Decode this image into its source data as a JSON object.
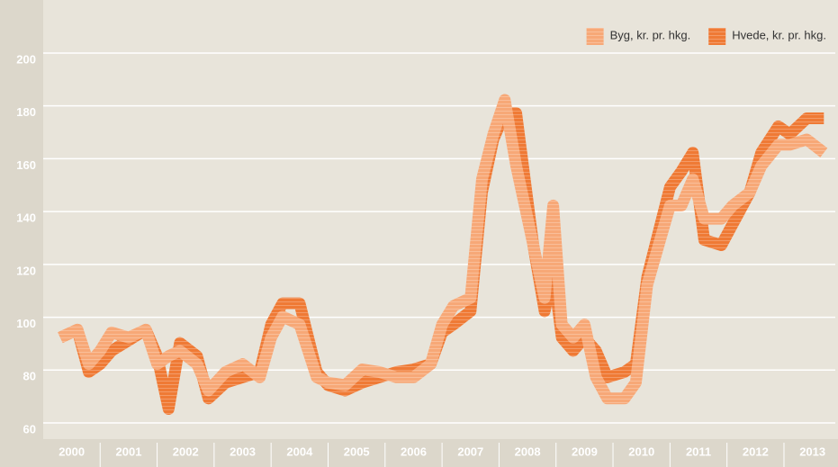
{
  "chart_data": {
    "type": "line",
    "x": [
      2000.3,
      2000.6,
      2000.8,
      2001.0,
      2001.2,
      2001.5,
      2001.8,
      2002.0,
      2002.2,
      2002.4,
      2002.7,
      2002.9,
      2003.2,
      2003.5,
      2003.8,
      2004.0,
      2004.2,
      2004.5,
      2004.8,
      2005.0,
      2005.3,
      2005.6,
      2005.9,
      2006.2,
      2006.5,
      2006.8,
      2007.0,
      2007.2,
      2007.5,
      2007.7,
      2007.9,
      2008.1,
      2008.3,
      2008.6,
      2008.8,
      2008.95,
      2009.1,
      2009.3,
      2009.5,
      2009.7,
      2009.9,
      2010.2,
      2010.4,
      2010.6,
      2010.8,
      2011.0,
      2011.2,
      2011.4,
      2011.6,
      2011.9,
      2012.1,
      2012.4,
      2012.6,
      2012.9,
      2013.1,
      2013.4,
      2013.7
    ],
    "series": [
      {
        "name": "Hvede, kr. pr. hkg.",
        "color": "#ef7a35",
        "values": [
          95,
          98,
          82,
          85,
          90,
          94,
          98,
          88,
          68,
          93,
          88,
          72,
          78,
          80,
          82,
          100,
          108,
          108,
          82,
          77,
          75,
          78,
          80,
          82,
          83,
          85,
          97,
          100,
          105,
          150,
          170,
          180,
          180,
          130,
          105,
          120,
          95,
          90,
          95,
          90,
          80,
          82,
          85,
          118,
          135,
          152,
          158,
          165,
          132,
          130,
          138,
          150,
          165,
          175,
          172,
          178,
          178
        ]
      },
      {
        "name": "Byg, kr. pr. hkg.",
        "color": "#f7a877",
        "values": [
          95,
          98,
          85,
          90,
          97,
          95,
          98,
          85,
          88,
          90,
          85,
          75,
          82,
          85,
          80,
          95,
          103,
          100,
          80,
          78,
          77,
          83,
          82,
          80,
          80,
          85,
          100,
          107,
          110,
          155,
          172,
          185,
          160,
          130,
          110,
          145,
          100,
          95,
          100,
          80,
          72,
          72,
          78,
          115,
          130,
          145,
          145,
          155,
          140,
          140,
          145,
          150,
          160,
          168,
          168,
          170,
          165
        ]
      }
    ],
    "xlim": [
      2000,
      2013.9
    ],
    "xticks": [
      {
        "value": 2000.5,
        "label": "2000"
      },
      {
        "value": 2001.5,
        "label": "2001"
      },
      {
        "value": 2002.5,
        "label": "2002"
      },
      {
        "value": 2003.5,
        "label": "2003"
      },
      {
        "value": 2004.5,
        "label": "2004"
      },
      {
        "value": 2005.5,
        "label": "2005"
      },
      {
        "value": 2006.5,
        "label": "2006"
      },
      {
        "value": 2007.5,
        "label": "2007"
      },
      {
        "value": 2008.5,
        "label": "2008"
      },
      {
        "value": 2009.5,
        "label": "2009"
      },
      {
        "value": 2010.5,
        "label": "2010"
      },
      {
        "value": 2011.5,
        "label": "2011"
      },
      {
        "value": 2012.5,
        "label": "2012"
      },
      {
        "value": 2013.5,
        "label": "2013"
      }
    ],
    "ylim": [
      56.6,
      222.8
    ],
    "yticks": [
      60,
      80,
      100,
      120,
      140,
      160,
      180,
      200
    ],
    "grid": true,
    "legend": "top-right"
  }
}
